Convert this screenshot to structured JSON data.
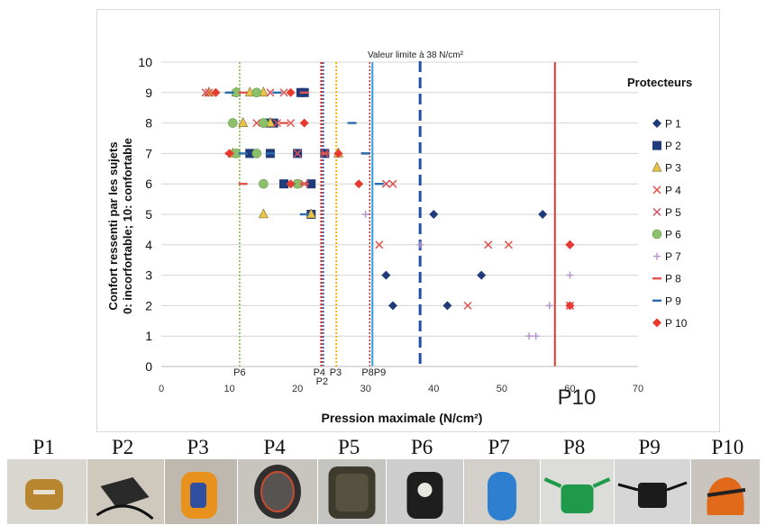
{
  "chart_data": {
    "type": "scatter",
    "title": "",
    "xlabel": "Pression maximale (N/cm²)",
    "ylabel_lines": [
      "Confort ressenti par les sujets",
      "0: incorfortable; 10: confortable"
    ],
    "xlim": [
      0,
      70
    ],
    "ylim": [
      0,
      10
    ],
    "x_ticks": [
      "0",
      "10",
      "20",
      "30",
      "40",
      "50",
      "60",
      "70"
    ],
    "y_ticks": [
      "0",
      "1",
      "2",
      "3",
      "4",
      "5",
      "6",
      "7",
      "8",
      "9",
      "10"
    ],
    "grid": "horizontal",
    "legend_title": "Protecteurs",
    "legend_position": "right",
    "limit_annotation": "Valeur limite à 38 N/cm²",
    "limit_value": 38,
    "series": [
      {
        "name": "P 1",
        "marker": "diamond",
        "color": "#1f3b7a",
        "points": [
          [
            40,
            5
          ],
          [
            56,
            5
          ],
          [
            60,
            4
          ],
          [
            33,
            3
          ],
          [
            47,
            3
          ],
          [
            34,
            2
          ],
          [
            42,
            2
          ]
        ]
      },
      {
        "name": "P 2",
        "marker": "square",
        "color": "#1f3b7a",
        "points": [
          [
            20.5,
            9
          ],
          [
            21,
            9
          ],
          [
            15.5,
            8
          ],
          [
            16.5,
            8
          ],
          [
            13,
            7
          ],
          [
            16,
            7
          ],
          [
            20,
            7
          ],
          [
            24,
            7
          ],
          [
            18,
            6
          ],
          [
            22,
            6
          ],
          [
            22,
            5
          ]
        ]
      },
      {
        "name": "P 3",
        "marker": "triangle",
        "color": "#e8c34a",
        "points": [
          [
            7,
            9
          ],
          [
            11,
            9
          ],
          [
            13,
            9
          ],
          [
            15,
            9
          ],
          [
            12,
            8
          ],
          [
            16,
            8
          ],
          [
            10.5,
            7
          ],
          [
            26,
            7
          ],
          [
            15,
            5
          ],
          [
            22,
            5
          ]
        ]
      },
      {
        "name": "P 4",
        "marker": "x",
        "color": "#e0554f",
        "points": [
          [
            7,
            9
          ],
          [
            18,
            9
          ],
          [
            14,
            8
          ],
          [
            19,
            8
          ],
          [
            20,
            7
          ],
          [
            24,
            7
          ],
          [
            21,
            6
          ],
          [
            34,
            6
          ],
          [
            32,
            4
          ],
          [
            48,
            4
          ],
          [
            51,
            4
          ],
          [
            45,
            2
          ],
          [
            60,
            2
          ]
        ]
      },
      {
        "name": "P 5",
        "marker": "x",
        "color": "#d8505a",
        "points": [
          [
            6.5,
            9
          ],
          [
            16,
            9
          ],
          [
            17,
            8
          ],
          [
            20,
            7
          ],
          [
            24,
            7
          ],
          [
            20,
            6
          ],
          [
            33,
            6
          ],
          [
            60,
            2
          ]
        ]
      },
      {
        "name": "P 6",
        "marker": "circle",
        "color": "#8cc06b",
        "points": [
          [
            11,
            9
          ],
          [
            14,
            9
          ],
          [
            10.5,
            8
          ],
          [
            15,
            8
          ],
          [
            11,
            7
          ],
          [
            14,
            7
          ],
          [
            15,
            6
          ],
          [
            20,
            6
          ]
        ]
      },
      {
        "name": "P 7",
        "marker": "plus",
        "color": "#b690cf",
        "points": [
          [
            30,
            5
          ],
          [
            38,
            4
          ],
          [
            60,
            3
          ],
          [
            57,
            2
          ],
          [
            54,
            1
          ],
          [
            55,
            1
          ]
        ]
      },
      {
        "name": "P 8",
        "marker": "dash",
        "color": "#e0554f",
        "points": [
          [
            12,
            9
          ],
          [
            21,
            9
          ],
          [
            18,
            8
          ],
          [
            10,
            7
          ],
          [
            24,
            7
          ],
          [
            12,
            6
          ],
          [
            21,
            6
          ],
          [
            30,
            7
          ]
        ]
      },
      {
        "name": "P 9",
        "marker": "dash",
        "color": "#2b6cb0",
        "points": [
          [
            10,
            9
          ],
          [
            17,
            9
          ],
          [
            28,
            8
          ],
          [
            12,
            7
          ],
          [
            16,
            7
          ],
          [
            30,
            7
          ],
          [
            19,
            6
          ],
          [
            32,
            6
          ],
          [
            21,
            5
          ]
        ]
      },
      {
        "name": "P 10",
        "marker": "diamond",
        "color": "#e83a2e",
        "points": [
          [
            8,
            9
          ],
          [
            19,
            9
          ],
          [
            21,
            8
          ],
          [
            10,
            7
          ],
          [
            26,
            7
          ],
          [
            29,
            6
          ],
          [
            19,
            6
          ],
          [
            60,
            4
          ],
          [
            60,
            2
          ]
        ]
      }
    ],
    "vlines": [
      {
        "x": 11.5,
        "color": "#7ab648",
        "style": "dotted",
        "width": 1.5
      },
      {
        "x": 23.5,
        "color": "#cc2e2e",
        "style": "dotted",
        "width": 2.5
      },
      {
        "x": 23.8,
        "color": "#2b4fa8",
        "style": "dotted",
        "width": 1.5
      },
      {
        "x": 25.7,
        "color": "#f0b400",
        "style": "dotted",
        "width": 2
      },
      {
        "x": 30.6,
        "color": "#cc2e2e",
        "style": "dotted",
        "width": 1.5
      },
      {
        "x": 31.0,
        "color": "#2b9fd6",
        "style": "solid",
        "width": 2
      },
      {
        "x": 38,
        "color": "#1f4fa8",
        "style": "dashed",
        "width": 3
      },
      {
        "x": 57.8,
        "color": "#e83a2e",
        "style": "solid",
        "width": 2
      }
    ],
    "vline_labels": [
      {
        "text": "P6",
        "x": 11.5,
        "row": 1,
        "size": "small"
      },
      {
        "text": "P4",
        "x": 23.2,
        "row": 1,
        "size": "small"
      },
      {
        "text": "P3",
        "x": 25.6,
        "row": 1,
        "size": "small"
      },
      {
        "text": "P8P9",
        "x": 31.2,
        "row": 1,
        "size": "small"
      },
      {
        "text": "P2",
        "x": 23.6,
        "row": 2,
        "size": "small"
      },
      {
        "text": "P10",
        "x": 61,
        "row": 2,
        "size": "large"
      }
    ]
  },
  "photos": [
    {
      "label": "P1",
      "bg": "#d9d6cf",
      "obj": "#b8862e"
    },
    {
      "label": "P2",
      "bg": "#cfc8bc",
      "obj": "#2a2a2a"
    },
    {
      "label": "P3",
      "bg": "#bfb8ae",
      "obj": "#e8911c"
    },
    {
      "label": "P4",
      "bg": "#c8c4be",
      "obj": "#2f2f2f"
    },
    {
      "label": "P5",
      "bg": "#c4c4c0",
      "obj": "#3e3a2e"
    },
    {
      "label": "P6",
      "bg": "#cdcdcd",
      "obj": "#1e1e1e"
    },
    {
      "label": "P7",
      "bg": "#d3d0cb",
      "obj": "#2f7fd0"
    },
    {
      "label": "P8",
      "bg": "#dcdcd8",
      "obj": "#1f9a4a"
    },
    {
      "label": "P9",
      "bg": "#d6d6d6",
      "obj": "#1b1b1b"
    },
    {
      "label": "P10",
      "bg": "#c9c4bd",
      "obj": "#e0691a"
    }
  ]
}
